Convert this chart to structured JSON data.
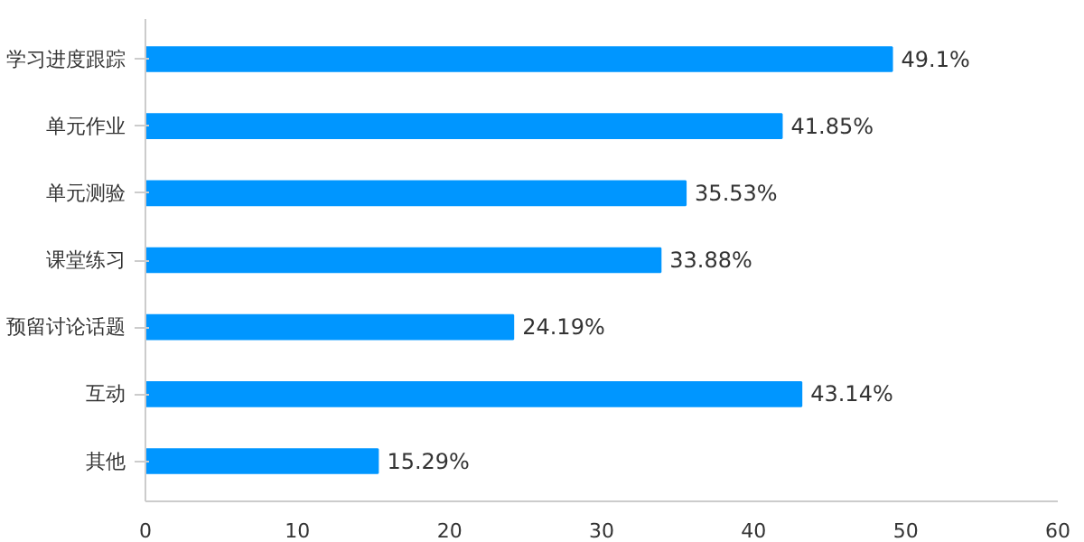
{
  "chart_data": {
    "type": "bar",
    "orientation": "horizontal",
    "categories": [
      "学习进度跟踪",
      "单元作业",
      "单元测验",
      "课堂练习",
      "预留讨论话题",
      "互动",
      "其他"
    ],
    "values": [
      49.1,
      41.85,
      35.53,
      33.88,
      24.19,
      43.14,
      15.29
    ],
    "value_labels": [
      "49.1%",
      "41.85%",
      "35.53%",
      "33.88%",
      "24.19%",
      "43.14%",
      "15.29%"
    ],
    "color": "#0096ff",
    "xlim": [
      0,
      60
    ],
    "xticks": [
      0,
      10,
      20,
      30,
      40,
      50,
      60
    ],
    "grid": false
  }
}
